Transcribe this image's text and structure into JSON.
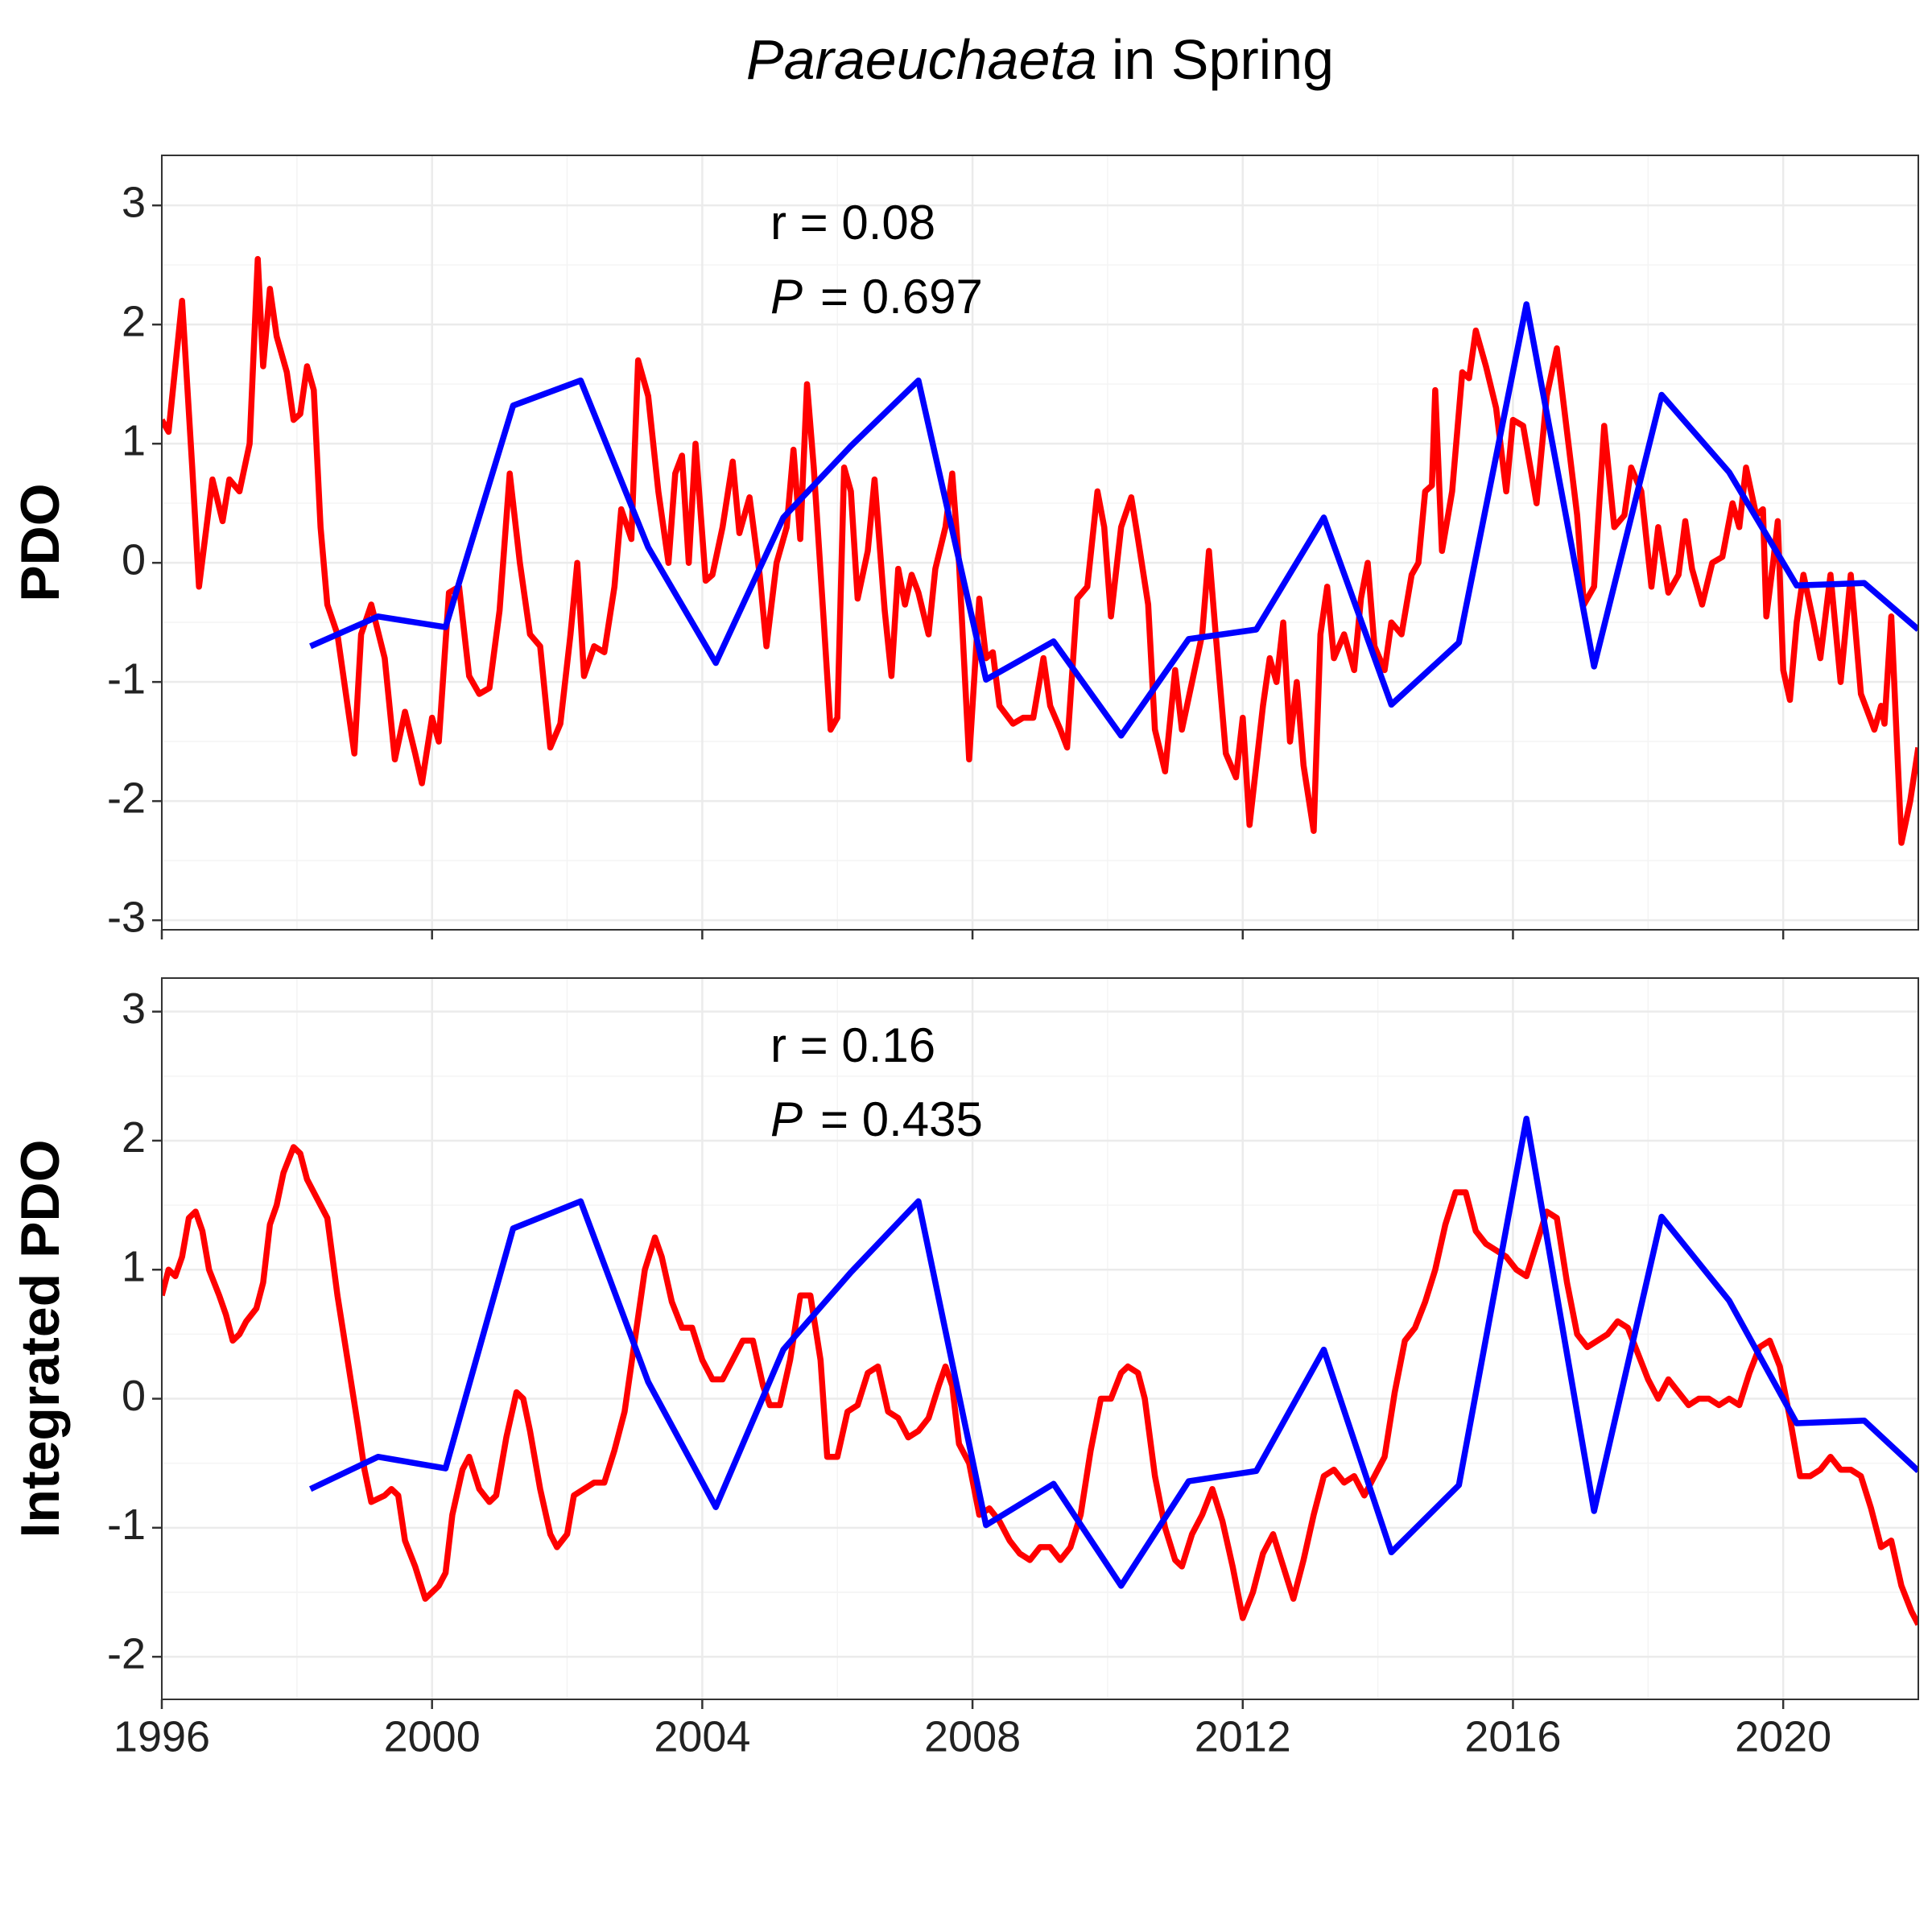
{
  "chart_data": [
    {
      "type": "line",
      "title": {
        "italic": "Paraeuchaeta",
        "text": "in Spring"
      },
      "ylabel": "PDO",
      "annotations": [
        {
          "text": "r = 0.08"
        },
        {
          "italic": "P",
          "text": "= 0.697"
        }
      ],
      "xlim": [
        1996,
        2022
      ],
      "xticks": [
        1996,
        2000,
        2004,
        2008,
        2012,
        2016,
        2020
      ],
      "show_xtick_labels": false,
      "ylim": [
        -3.08,
        3.42
      ],
      "yticks": [
        -3,
        -2,
        -1,
        0,
        1,
        2,
        3
      ],
      "grid": true,
      "series": [
        {
          "color": "#ff0000",
          "x": [
            1996.0,
            1996.1,
            1996.3,
            1996.45,
            1996.55,
            1996.75,
            1996.9,
            1997.0,
            1997.15,
            1997.3,
            1997.42,
            1997.5,
            1997.6,
            1997.7,
            1997.85,
            1997.95,
            1998.05,
            1998.15,
            1998.25,
            1998.35,
            1998.45,
            1998.6,
            1998.75,
            1998.85,
            1998.95,
            1999.1,
            1999.3,
            1999.45,
            1999.6,
            1999.75,
            1999.85,
            2000.0,
            2000.1,
            2000.25,
            2000.4,
            2000.55,
            2000.7,
            2000.85,
            2001.0,
            2001.15,
            2001.3,
            2001.45,
            2001.6,
            2001.75,
            2001.9,
            2002.05,
            2002.15,
            2002.25,
            2002.4,
            2002.55,
            2002.7,
            2002.8,
            2002.95,
            2003.05,
            2003.2,
            2003.35,
            2003.5,
            2003.6,
            2003.7,
            2003.8,
            2003.9,
            2004.05,
            2004.15,
            2004.3,
            2004.45,
            2004.55,
            2004.7,
            2004.85,
            2004.95,
            2005.1,
            2005.25,
            2005.35,
            2005.45,
            2005.55,
            2005.65,
            2005.8,
            2005.9,
            2006.0,
            2006.1,
            2006.2,
            2006.3,
            2006.45,
            2006.55,
            2006.7,
            2006.8,
            2006.9,
            2007.0,
            2007.1,
            2007.2,
            2007.35,
            2007.45,
            2007.6,
            2007.7,
            2007.8,
            2007.95,
            2008.1,
            2008.2,
            2008.3,
            2008.4,
            2008.6,
            2008.75,
            2008.9,
            2009.05,
            2009.15,
            2009.3,
            2009.4,
            2009.55,
            2009.7,
            2009.85,
            2009.95,
            2010.05,
            2010.2,
            2010.35,
            2010.45,
            2010.6,
            2010.7,
            2010.85,
            2011.0,
            2011.1,
            2011.25,
            2011.4,
            2011.5,
            2011.6,
            2011.75,
            2011.9,
            2012.0,
            2012.1,
            2012.3,
            2012.4,
            2012.5,
            2012.6,
            2012.7,
            2012.8,
            2012.9,
            2013.05,
            2013.15,
            2013.25,
            2013.35,
            2013.5,
            2013.65,
            2013.75,
            2013.85,
            2013.95,
            2014.1,
            2014.2,
            2014.35,
            2014.5,
            2014.6,
            2014.7,
            2014.8,
            2014.85,
            2014.95,
            2015.1,
            2015.25,
            2015.35,
            2015.45,
            2015.6,
            2015.75,
            2015.9,
            2016.0,
            2016.15,
            2016.35,
            2016.5,
            2016.65,
            2016.8,
            2016.95,
            2017.05,
            2017.2,
            2017.35,
            2017.5,
            2017.65,
            2017.75,
            2017.9,
            2018.05,
            2018.15,
            2018.3,
            2018.45,
            2018.55,
            2018.65,
            2018.8,
            2018.95,
            2019.1,
            2019.25,
            2019.35,
            2019.45,
            2019.6,
            2019.7,
            2019.75,
            2019.85,
            2019.92,
            2020.0,
            2020.1,
            2020.2,
            2020.3,
            2020.45,
            2020.55,
            2020.7,
            2020.85,
            2021.0,
            2021.15,
            2021.35,
            2021.45,
            2021.5,
            2021.6,
            2021.75,
            2021.88,
            2022.0
          ],
          "values": [
            1.2,
            1.1,
            2.2,
            0.8,
            -0.2,
            0.7,
            0.35,
            0.7,
            0.6,
            1.0,
            2.55,
            1.65,
            2.3,
            1.9,
            1.6,
            1.2,
            1.25,
            1.65,
            1.45,
            0.3,
            -0.35,
            -0.6,
            -1.2,
            -1.6,
            -0.6,
            -0.35,
            -0.8,
            -1.65,
            -1.25,
            -1.6,
            -1.85,
            -1.3,
            -1.5,
            -0.25,
            -0.2,
            -0.95,
            -1.1,
            -1.05,
            -0.4,
            0.75,
            0.0,
            -0.6,
            -0.7,
            -1.55,
            -1.35,
            -0.6,
            0.0,
            -0.95,
            -0.7,
            -0.75,
            -0.2,
            0.45,
            0.2,
            1.7,
            1.4,
            0.6,
            0.0,
            0.75,
            0.9,
            0.0,
            1.0,
            -0.15,
            -0.1,
            0.3,
            0.85,
            0.25,
            0.55,
            -0.1,
            -0.7,
            0.0,
            0.3,
            0.95,
            0.2,
            1.5,
            0.8,
            -0.5,
            -1.4,
            -1.3,
            0.8,
            0.6,
            -0.3,
            0.1,
            0.7,
            -0.4,
            -0.95,
            -0.05,
            -0.35,
            -0.1,
            -0.25,
            -0.6,
            -0.05,
            0.3,
            0.75,
            0.0,
            -1.65,
            -0.3,
            -0.8,
            -0.75,
            -1.2,
            -1.35,
            -1.3,
            -1.3,
            -0.8,
            -1.2,
            -1.4,
            -1.55,
            -0.3,
            -0.2,
            0.6,
            0.3,
            -0.45,
            0.3,
            0.55,
            0.2,
            -0.35,
            -1.4,
            -1.75,
            -0.9,
            -1.4,
            -1.0,
            -0.6,
            0.1,
            -0.6,
            -1.6,
            -1.8,
            -1.3,
            -2.2,
            -1.2,
            -0.8,
            -1.0,
            -0.5,
            -1.5,
            -1.0,
            -1.7,
            -2.25,
            -0.6,
            -0.2,
            -0.8,
            -0.6,
            -0.9,
            -0.3,
            0.0,
            -0.7,
            -0.9,
            -0.5,
            -0.6,
            -0.1,
            0.0,
            0.6,
            0.65,
            1.45,
            0.1,
            0.6,
            1.6,
            1.55,
            1.95,
            1.65,
            1.3,
            0.6,
            1.2,
            1.15,
            0.5,
            1.4,
            1.8,
            1.1,
            0.4,
            -0.35,
            -0.2,
            1.15,
            0.3,
            0.4,
            0.8,
            0.6,
            -0.2,
            0.3,
            -0.25,
            -0.1,
            0.35,
            -0.05,
            -0.35,
            0.0,
            0.05,
            0.5,
            0.3,
            0.8,
            0.4,
            0.45,
            -0.45,
            0.0,
            0.35,
            -0.9,
            -1.15,
            -0.5,
            -0.1,
            -0.5,
            -0.8,
            -0.1,
            -1.0,
            -0.1,
            -1.1,
            -1.4,
            -1.2,
            -1.35,
            -0.45,
            -2.35,
            -2.0,
            -1.55
          ]
        },
        {
          "color": "#0000ff",
          "x": [
            1998.2,
            1999.2,
            2000.2,
            2001.2,
            2002.2,
            2003.2,
            2004.2,
            2005.2,
            2006.2,
            2007.2,
            2008.2,
            2009.2,
            2010.2,
            2011.2,
            2012.2,
            2013.2,
            2014.2,
            2015.2,
            2016.2,
            2017.2,
            2018.2,
            2019.2,
            2020.2,
            2021.2,
            2022.0
          ],
          "values": [
            -0.7,
            -0.45,
            -0.54,
            1.32,
            1.53,
            0.13,
            -0.84,
            0.38,
            0.98,
            1.53,
            -0.98,
            -0.66,
            -1.45,
            -0.64,
            -0.56,
            0.38,
            -1.19,
            -0.67,
            2.17,
            -0.87,
            1.41,
            0.76,
            -0.19,
            -0.17,
            -0.56
          ]
        }
      ]
    },
    {
      "type": "line",
      "ylabel": "Integrated PDO",
      "annotations": [
        {
          "text": "r = 0.16"
        },
        {
          "italic": "P",
          "text": "= 0.435"
        }
      ],
      "xlim": [
        1996,
        2022
      ],
      "xticks": [
        1996,
        2000,
        2004,
        2008,
        2012,
        2016,
        2020
      ],
      "show_xtick_labels": true,
      "ylim": [
        -2.33,
        3.26
      ],
      "yticks": [
        -2,
        -1,
        0,
        1,
        2,
        3
      ],
      "grid": true,
      "series": [
        {
          "color": "#ff0000",
          "x": [
            1996.0,
            1996.1,
            1996.2,
            1996.3,
            1996.4,
            1996.5,
            1996.6,
            1996.7,
            1996.85,
            1996.95,
            1997.05,
            1997.15,
            1997.25,
            1997.4,
            1997.5,
            1997.6,
            1997.7,
            1997.8,
            1997.95,
            1998.05,
            1998.15,
            1998.3,
            1998.45,
            1998.5,
            1998.6,
            1998.75,
            1998.9,
            1999.0,
            1999.1,
            1999.3,
            1999.4,
            1999.5,
            1999.6,
            1999.75,
            1999.9,
            2000.0,
            2000.1,
            2000.2,
            2000.3,
            2000.45,
            2000.55,
            2000.7,
            2000.85,
            2000.95,
            2001.1,
            2001.25,
            2001.35,
            2001.45,
            2001.6,
            2001.75,
            2001.85,
            2002.0,
            2002.1,
            2002.25,
            2002.4,
            2002.55,
            2002.7,
            2002.85,
            2003.0,
            2003.15,
            2003.3,
            2003.4,
            2003.55,
            2003.7,
            2003.85,
            2004.0,
            2004.15,
            2004.3,
            2004.45,
            2004.6,
            2004.75,
            2004.9,
            2005.0,
            2005.15,
            2005.3,
            2005.45,
            2005.6,
            2005.75,
            2005.85,
            2006.0,
            2006.15,
            2006.3,
            2006.45,
            2006.6,
            2006.75,
            2006.9,
            2007.05,
            2007.2,
            2007.35,
            2007.5,
            2007.6,
            2007.7,
            2007.8,
            2007.95,
            2008.1,
            2008.25,
            2008.4,
            2008.55,
            2008.7,
            2008.85,
            2009.0,
            2009.15,
            2009.3,
            2009.45,
            2009.6,
            2009.75,
            2009.9,
            2010.05,
            2010.2,
            2010.3,
            2010.45,
            2010.55,
            2010.7,
            2010.85,
            2011.0,
            2011.1,
            2011.25,
            2011.4,
            2011.55,
            2011.7,
            2011.85,
            2012.0,
            2012.15,
            2012.3,
            2012.45,
            2012.6,
            2012.75,
            2012.9,
            2013.05,
            2013.2,
            2013.35,
            2013.5,
            2013.65,
            2013.8,
            2013.95,
            2014.1,
            2014.25,
            2014.4,
            2014.55,
            2014.7,
            2014.85,
            2015.0,
            2015.15,
            2015.3,
            2015.45,
            2015.6,
            2015.75,
            2015.9,
            2016.05,
            2016.2,
            2016.35,
            2016.5,
            2016.65,
            2016.8,
            2016.95,
            2017.1,
            2017.25,
            2017.4,
            2017.55,
            2017.7,
            2017.85,
            2018.0,
            2018.15,
            2018.3,
            2018.45,
            2018.6,
            2018.75,
            2018.9,
            2019.05,
            2019.2,
            2019.35,
            2019.5,
            2019.65,
            2019.8,
            2019.95,
            2020.1,
            2020.25,
            2020.4,
            2020.55,
            2020.7,
            2020.85,
            2021.0,
            2021.15,
            2021.3,
            2021.45,
            2021.6,
            2021.75,
            2021.9,
            2022.0
          ],
          "values": [
            0.8,
            1.0,
            0.95,
            1.1,
            1.4,
            1.45,
            1.3,
            1.0,
            0.8,
            0.65,
            0.45,
            0.5,
            0.6,
            0.7,
            0.9,
            1.35,
            1.5,
            1.75,
            1.95,
            1.9,
            1.7,
            1.55,
            1.4,
            1.2,
            0.8,
            0.3,
            -0.2,
            -0.55,
            -0.8,
            -0.75,
            -0.7,
            -0.75,
            -1.1,
            -1.3,
            -1.55,
            -1.5,
            -1.45,
            -1.35,
            -0.9,
            -0.55,
            -0.45,
            -0.7,
            -0.8,
            -0.75,
            -0.3,
            0.05,
            0.0,
            -0.25,
            -0.7,
            -1.05,
            -1.15,
            -1.05,
            -0.75,
            -0.7,
            -0.65,
            -0.65,
            -0.4,
            -0.1,
            0.45,
            1.0,
            1.25,
            1.1,
            0.75,
            0.55,
            0.55,
            0.3,
            0.15,
            0.15,
            0.3,
            0.45,
            0.45,
            0.1,
            -0.05,
            -0.05,
            0.3,
            0.8,
            0.8,
            0.3,
            -0.45,
            -0.45,
            -0.1,
            -0.05,
            0.2,
            0.25,
            -0.1,
            -0.15,
            -0.3,
            -0.25,
            -0.15,
            0.1,
            0.25,
            0.1,
            -0.35,
            -0.5,
            -0.9,
            -0.85,
            -0.95,
            -1.1,
            -1.2,
            -1.25,
            -1.15,
            -1.15,
            -1.25,
            -1.15,
            -0.9,
            -0.4,
            0.0,
            0.0,
            0.2,
            0.25,
            0.2,
            0.0,
            -0.6,
            -1.0,
            -1.25,
            -1.3,
            -1.05,
            -0.9,
            -0.7,
            -0.95,
            -1.3,
            -1.7,
            -1.5,
            -1.2,
            -1.05,
            -1.3,
            -1.55,
            -1.25,
            -0.9,
            -0.6,
            -0.55,
            -0.65,
            -0.6,
            -0.75,
            -0.6,
            -0.45,
            0.05,
            0.45,
            0.55,
            0.75,
            1.0,
            1.35,
            1.6,
            1.6,
            1.3,
            1.2,
            1.15,
            1.1,
            1.0,
            0.95,
            1.2,
            1.45,
            1.4,
            0.9,
            0.5,
            0.4,
            0.45,
            0.5,
            0.6,
            0.55,
            0.35,
            0.15,
            0.0,
            0.15,
            0.05,
            -0.05,
            0.0,
            0.0,
            -0.05,
            0.0,
            -0.05,
            0.2,
            0.4,
            0.45,
            0.25,
            -0.15,
            -0.6,
            -0.6,
            -0.55,
            -0.45,
            -0.55,
            -0.55,
            -0.6,
            -0.85,
            -1.15,
            -1.1,
            -1.45,
            -1.65,
            -1.75
          ]
        },
        {
          "color": "#0000ff",
          "x": [
            1998.2,
            1999.2,
            2000.2,
            2001.2,
            2002.2,
            2003.2,
            2004.2,
            2005.2,
            2006.2,
            2007.2,
            2008.2,
            2009.2,
            2010.2,
            2011.2,
            2012.2,
            2013.2,
            2014.2,
            2015.2,
            2016.2,
            2017.2,
            2018.2,
            2019.2,
            2020.2,
            2021.2,
            2022.0
          ],
          "values": [
            -0.7,
            -0.45,
            -0.54,
            1.32,
            1.53,
            0.13,
            -0.84,
            0.38,
            0.98,
            1.53,
            -0.98,
            -0.66,
            -1.45,
            -0.64,
            -0.56,
            0.38,
            -1.19,
            -0.67,
            2.17,
            -0.87,
            1.41,
            0.76,
            -0.19,
            -0.17,
            -0.56
          ]
        }
      ]
    }
  ]
}
